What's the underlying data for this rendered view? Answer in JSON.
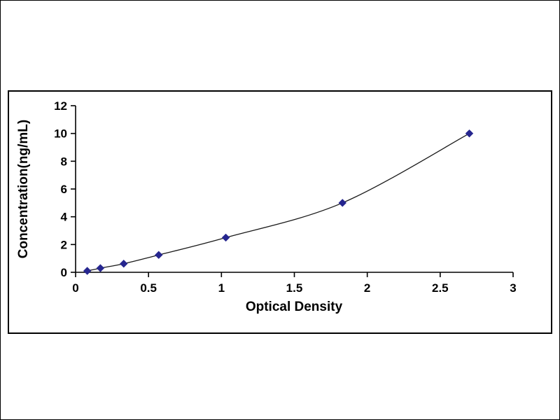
{
  "chart_data": {
    "type": "line",
    "title": "",
    "xlabel": "Optical Density",
    "ylabel": "Concentration(ng/mL)",
    "x": [
      0.08,
      0.17,
      0.33,
      0.57,
      1.03,
      1.83,
      2.7
    ],
    "y": [
      0.1,
      0.3,
      0.62,
      1.25,
      2.5,
      5.0,
      10.0
    ],
    "xlim": [
      0,
      3
    ],
    "ylim": [
      0,
      12
    ],
    "xticks": [
      0,
      0.5,
      1,
      1.5,
      2,
      2.5,
      3
    ],
    "yticks": [
      0,
      2,
      4,
      6,
      8,
      10,
      12
    ],
    "grid": false,
    "legend": false,
    "marker": "diamond",
    "colors": {
      "line": "#1a1a1a",
      "marker": "#26268f",
      "axis": "#000000"
    }
  }
}
